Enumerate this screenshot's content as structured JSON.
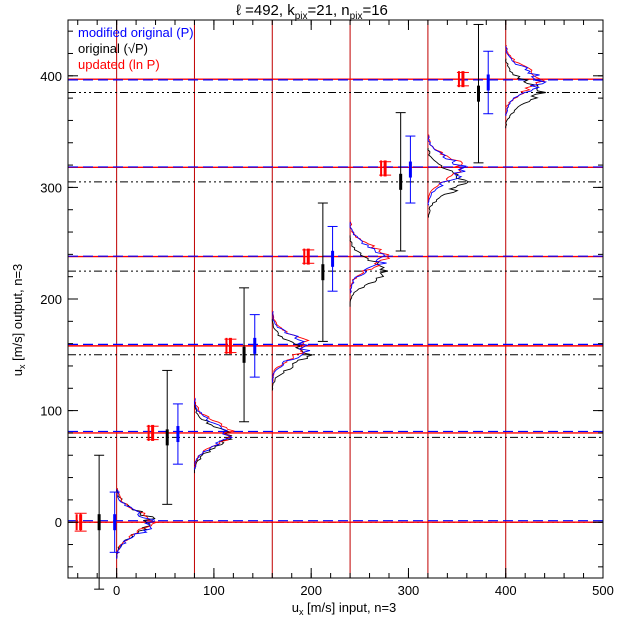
{
  "chart_data": {
    "type": "line",
    "title": {
      "ell_label": "ℓ =492, k",
      "ell_sub": "pix",
      "ell_mid": "=21, n",
      "n_sub": "pix",
      "n_tail": "=16"
    },
    "xlabel": {
      "prefix": "u",
      "sub": "x",
      "rest": " [m/s] input, n=3"
    },
    "ylabel": {
      "prefix": "u",
      "sub": "x",
      "rest": " [m/s] output, n=3"
    },
    "xlim": [
      -50,
      500
    ],
    "ylim": [
      -50,
      450
    ],
    "x_ticks": [
      0,
      100,
      200,
      300,
      400,
      500
    ],
    "y_ticks": [
      0,
      100,
      200,
      300,
      400
    ],
    "x_minor_step": 20,
    "y_minor_step": 20,
    "legend": {
      "placement": "top-left",
      "entries": [
        {
          "label": "modified original (P)",
          "color": "#0000ff"
        },
        {
          "label": "original (√P)",
          "color": "#000000"
        },
        {
          "label": "updated (ln P)",
          "color": "#ff0000"
        }
      ]
    },
    "inputs": [
      0,
      80,
      160,
      240,
      320,
      400
    ],
    "red_horizontal_lines": [
      0,
      80,
      158,
      238,
      318,
      397
    ],
    "blue_dashed_lines": [
      0,
      80,
      158,
      237,
      317,
      395
    ],
    "black_dashdot_lines": [
      0,
      76,
      150,
      225,
      305,
      385
    ],
    "error_bars": [
      {
        "input": 0,
        "red": {
          "x": -37,
          "y": 0,
          "err": 8
        },
        "black": {
          "x": -18,
          "y": 0,
          "err": 60
        },
        "blue": {
          "x": -2,
          "y": 0,
          "err": 27
        }
      },
      {
        "input": 80,
        "red": {
          "x": 37,
          "y": 80,
          "err": 6
        },
        "black": {
          "x": 52,
          "y": 76,
          "err": 60
        },
        "blue": {
          "x": 63,
          "y": 79,
          "err": 27
        }
      },
      {
        "input": 160,
        "red": {
          "x": 117,
          "y": 158,
          "err": 6
        },
        "black": {
          "x": 131,
          "y": 150,
          "err": 60
        },
        "blue": {
          "x": 142,
          "y": 158,
          "err": 28
        }
      },
      {
        "input": 240,
        "red": {
          "x": 197,
          "y": 238,
          "err": 6
        },
        "black": {
          "x": 212,
          "y": 224,
          "err": 62
        },
        "blue": {
          "x": 222,
          "y": 236,
          "err": 29
        }
      },
      {
        "input": 320,
        "red": {
          "x": 276,
          "y": 317,
          "err": 6
        },
        "black": {
          "x": 292,
          "y": 305,
          "err": 62
        },
        "blue": {
          "x": 302,
          "y": 316,
          "err": 30
        }
      },
      {
        "input": 400,
        "red": {
          "x": 356,
          "y": 397,
          "err": 6
        },
        "black": {
          "x": 372,
          "y": 384,
          "err": 62
        },
        "blue": {
          "x": 382,
          "y": 394,
          "err": 28
        }
      }
    ],
    "distributions": [
      {
        "input": 0,
        "red_peak": 0,
        "black_peak": 0,
        "sigma": 10,
        "amp": 34
      },
      {
        "input": 80,
        "red_peak": 80,
        "black_peak": 76,
        "sigma": 10,
        "amp": 34
      },
      {
        "input": 160,
        "red_peak": 158,
        "black_peak": 150,
        "sigma": 10,
        "amp": 34
      },
      {
        "input": 240,
        "red_peak": 238,
        "black_peak": 225,
        "sigma": 10,
        "amp": 34
      },
      {
        "input": 320,
        "red_peak": 317,
        "black_peak": 305,
        "sigma": 10,
        "amp": 34
      },
      {
        "input": 400,
        "red_peak": 397,
        "black_peak": 385,
        "sigma": 10,
        "amp": 34
      }
    ],
    "grid": false
  }
}
